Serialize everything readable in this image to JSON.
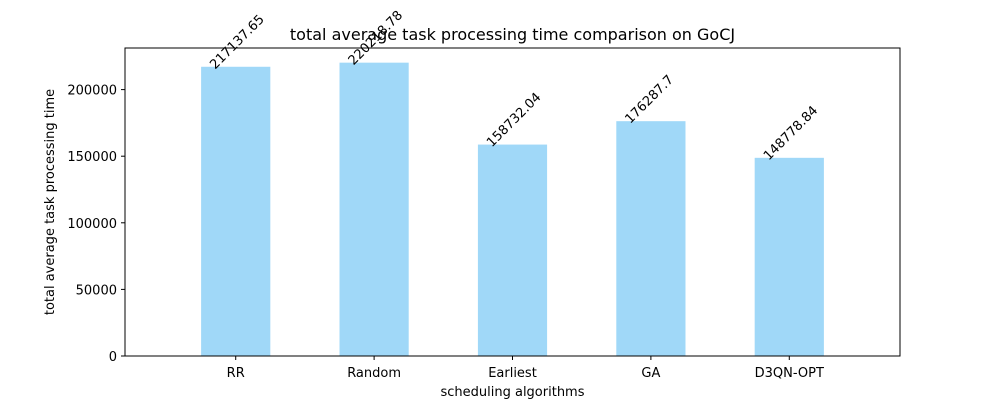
{
  "chart_data": {
    "type": "bar",
    "title": "total average task processing time comparison on GoCJ",
    "xlabel": "scheduling algorithms",
    "ylabel": "total average task processing time",
    "categories": [
      "RR",
      "Random",
      "Earliest",
      "GA",
      "D3QN-OPT"
    ],
    "values": [
      217137.65,
      220218.78,
      158732.04,
      176287.7,
      148778.84
    ],
    "value_labels": [
      "217137.65",
      "220218.78",
      "158732.04",
      "176287.7",
      "148778.84"
    ],
    "ylim": [
      0,
      231229.72
    ],
    "yticks": [
      0,
      50000,
      100000,
      150000,
      200000
    ],
    "ytick_labels": [
      "0",
      "50000",
      "100000",
      "150000",
      "200000"
    ],
    "grid": false,
    "bar_color": "#a0d8f8"
  }
}
